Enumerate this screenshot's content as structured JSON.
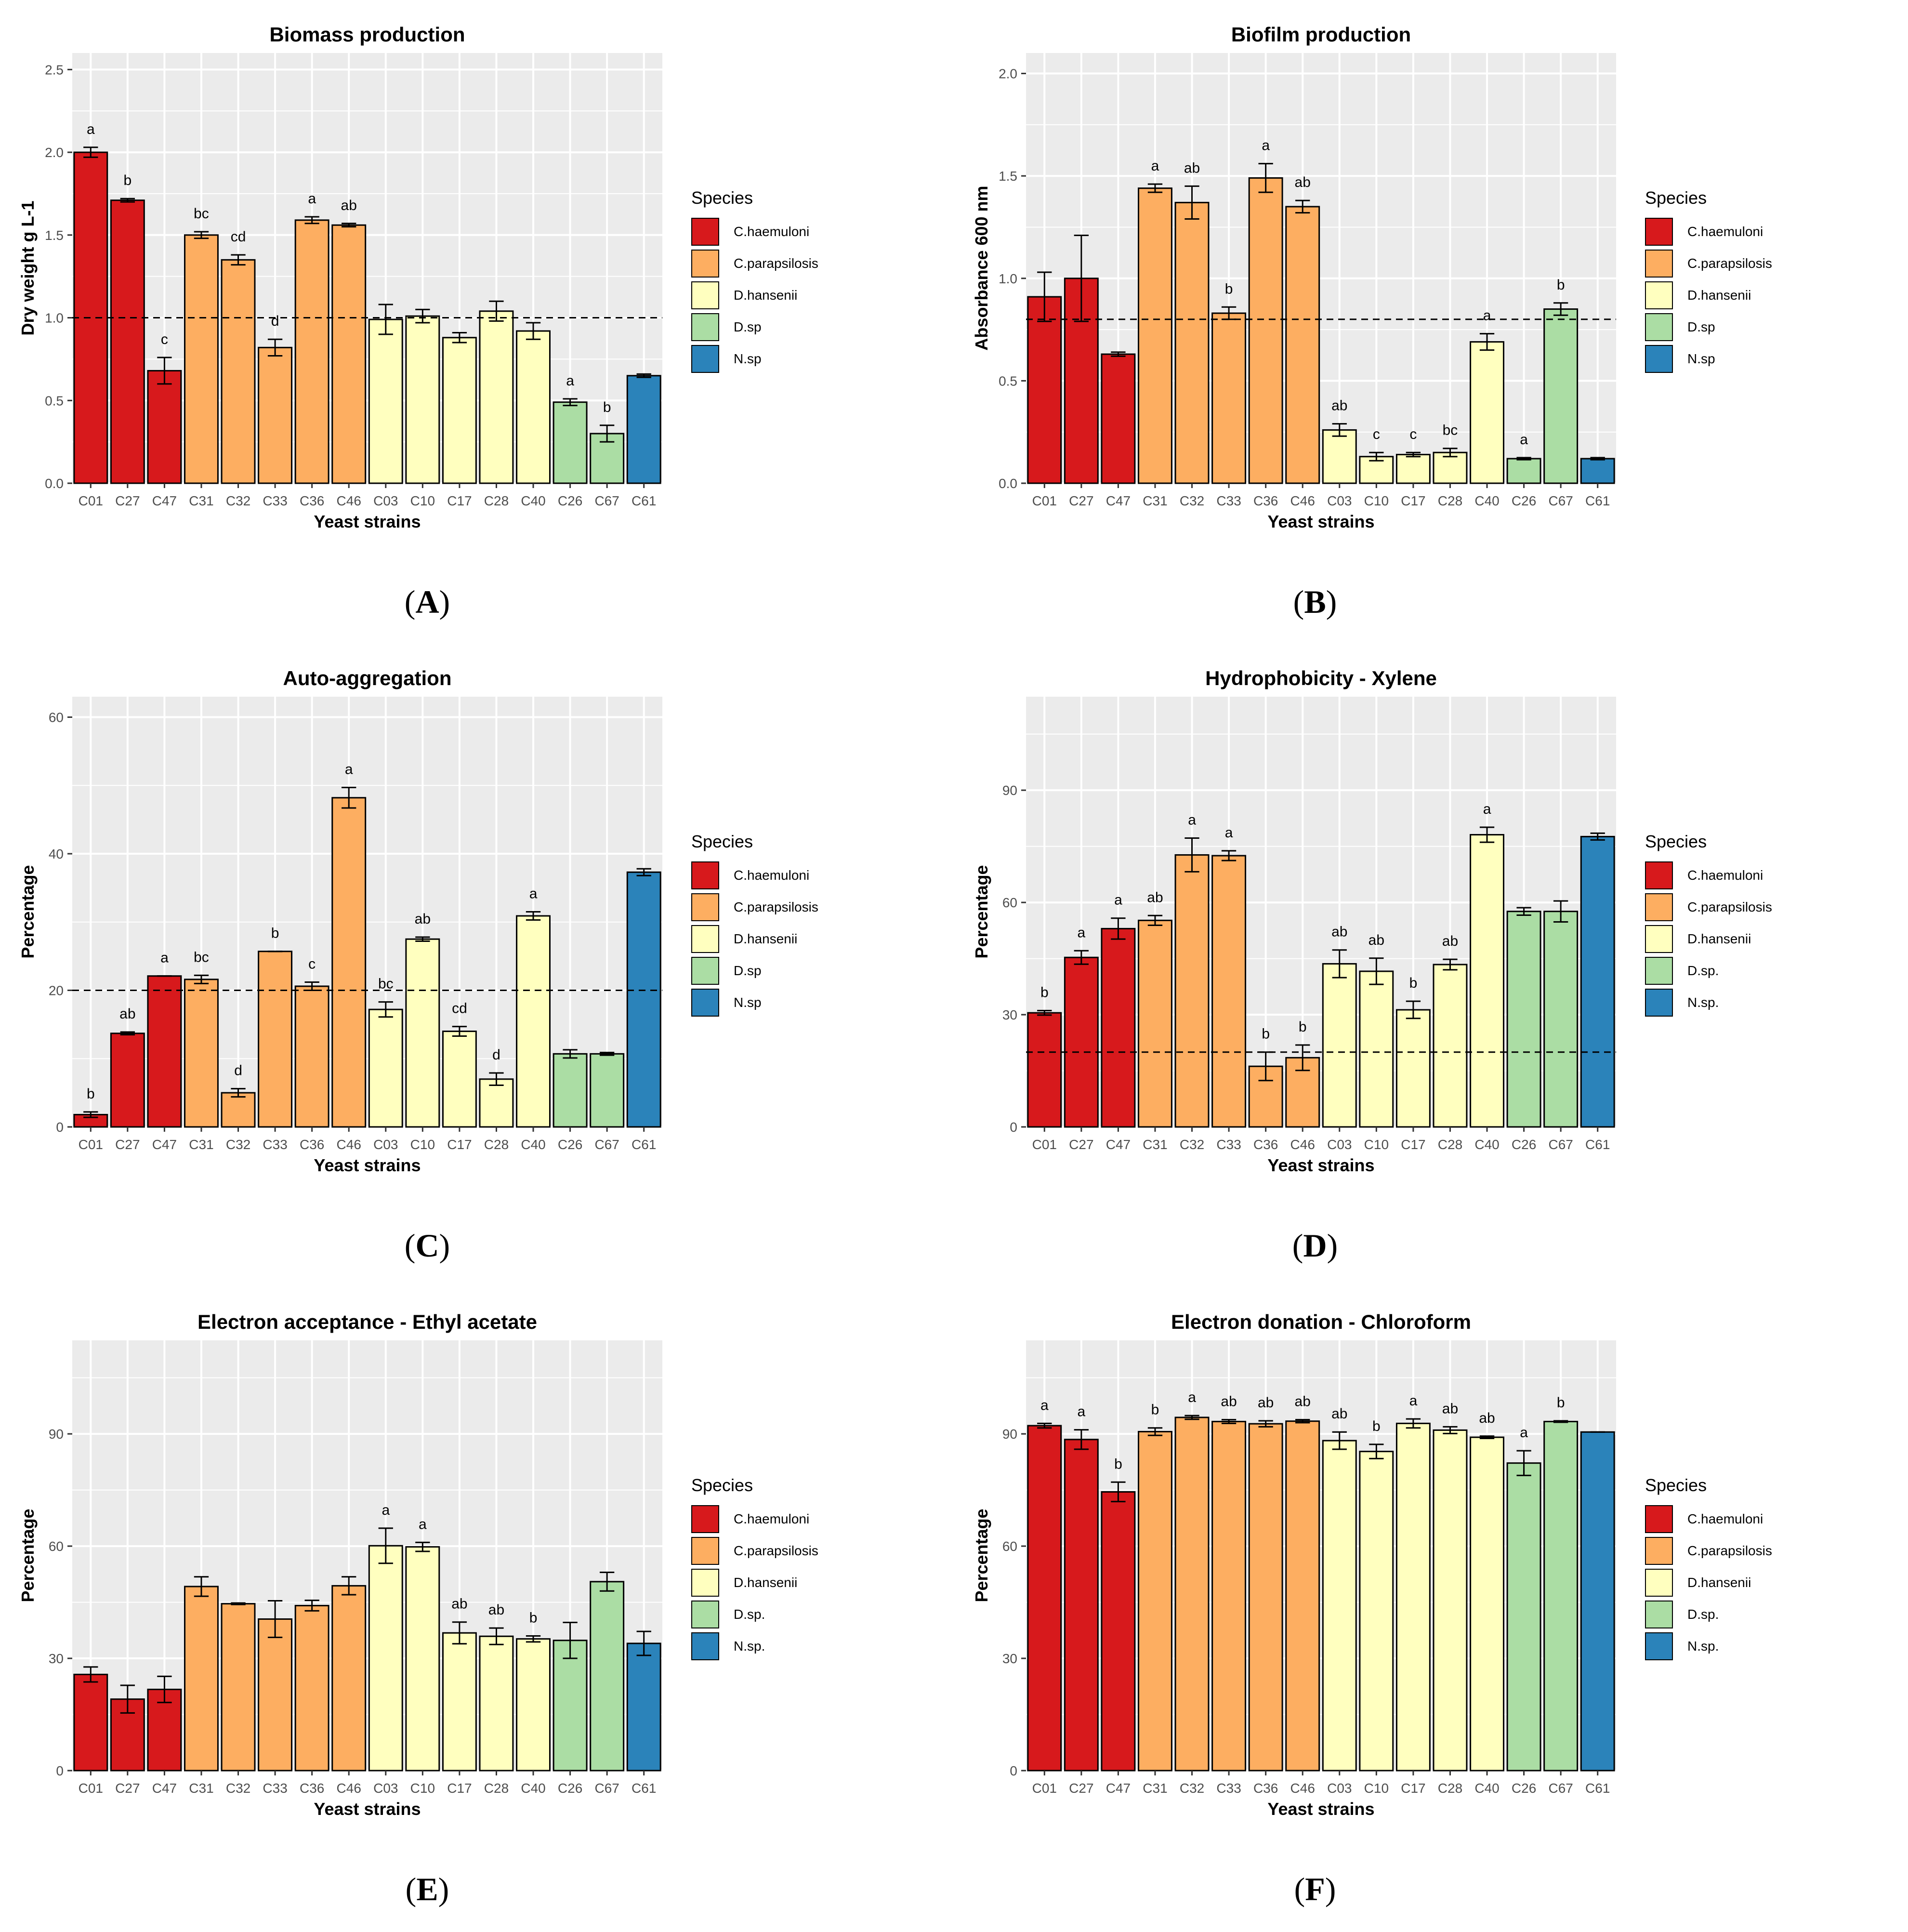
{
  "colors": {
    "C.haemuloni": "#d7191c",
    "C.parapsilosis": "#fdae61",
    "D.hansenii": "#ffffbf",
    "D.sp": "#abdda4",
    "N.sp": "#2b83ba",
    "panel_bg": "#ebebeb",
    "grid": "#ffffff"
  },
  "chart_data": [
    {
      "id": "A",
      "type": "bar",
      "panel_label": "A",
      "title": "Biomass production",
      "xlabel": "Yeast strains",
      "ylabel": "Dry weight g L-1",
      "ylim": [
        0,
        2.6
      ],
      "yticks": [
        0,
        0.5,
        1,
        1.5,
        2,
        2.5
      ],
      "ytick_labels": [
        "0.0",
        "0.5",
        "1.0",
        "1.5",
        "2.0",
        "2.5"
      ],
      "threshold": 1.0,
      "legend_title": "Species",
      "legend": [
        "C.haemuloni",
        "C.parapsilosis",
        "D.hansenii",
        "D.sp",
        "N.sp"
      ],
      "categories": [
        "C01",
        "C27",
        "C47",
        "C31",
        "C32",
        "C33",
        "C36",
        "C46",
        "C03",
        "C10",
        "C17",
        "C28",
        "C40",
        "C26",
        "C67",
        "C61"
      ],
      "species": [
        "C.haemuloni",
        "C.haemuloni",
        "C.haemuloni",
        "C.parapsilosis",
        "C.parapsilosis",
        "C.parapsilosis",
        "C.parapsilosis",
        "C.parapsilosis",
        "D.hansenii",
        "D.hansenii",
        "D.hansenii",
        "D.hansenii",
        "D.hansenii",
        "D.sp",
        "D.sp",
        "N.sp"
      ],
      "values": [
        2.0,
        1.71,
        0.68,
        1.5,
        1.35,
        0.82,
        1.59,
        1.56,
        0.99,
        1.01,
        0.88,
        1.04,
        0.92,
        0.49,
        0.3,
        0.65
      ],
      "errors": [
        0.03,
        0.01,
        0.08,
        0.02,
        0.03,
        0.05,
        0.02,
        0.01,
        0.09,
        0.04,
        0.03,
        0.06,
        0.05,
        0.02,
        0.05,
        0.01
      ],
      "letters": [
        "a",
        "b",
        "c",
        "bc",
        "cd",
        "d",
        "a",
        "ab",
        "",
        "",
        "",
        "",
        "",
        "a",
        "b",
        ""
      ]
    },
    {
      "id": "B",
      "type": "bar",
      "panel_label": "B",
      "title": "Biofilm production",
      "xlabel": "Yeast strains",
      "ylabel": "Absorbance 600 nm",
      "ylim": [
        0,
        2.1
      ],
      "yticks": [
        0,
        0.5,
        1,
        1.5,
        2
      ],
      "ytick_labels": [
        "0.0",
        "0.5",
        "1.0",
        "1.5",
        "2.0"
      ],
      "threshold": 0.8,
      "legend_title": "Species",
      "legend": [
        "C.haemuloni",
        "C.parapsilosis",
        "D.hansenii",
        "D.sp",
        "N.sp"
      ],
      "categories": [
        "C01",
        "C27",
        "C47",
        "C31",
        "C32",
        "C33",
        "C36",
        "C46",
        "C03",
        "C10",
        "C17",
        "C28",
        "C40",
        "C26",
        "C67",
        "C61"
      ],
      "species": [
        "C.haemuloni",
        "C.haemuloni",
        "C.haemuloni",
        "C.parapsilosis",
        "C.parapsilosis",
        "C.parapsilosis",
        "C.parapsilosis",
        "C.parapsilosis",
        "D.hansenii",
        "D.hansenii",
        "D.hansenii",
        "D.hansenii",
        "D.hansenii",
        "D.sp",
        "D.sp",
        "N.sp"
      ],
      "values": [
        0.91,
        1.0,
        0.63,
        1.44,
        1.37,
        0.83,
        1.49,
        1.35,
        0.26,
        0.13,
        0.14,
        0.15,
        0.69,
        0.12,
        0.85,
        0.12
      ],
      "errors": [
        0.12,
        0.21,
        0.01,
        0.02,
        0.08,
        0.03,
        0.07,
        0.03,
        0.03,
        0.02,
        0.01,
        0.02,
        0.04,
        0.005,
        0.03,
        0.005
      ],
      "letters": [
        "",
        "",
        "",
        "a",
        "ab",
        "b",
        "a",
        "ab",
        "ab",
        "c",
        "c",
        "bc",
        "a",
        "a",
        "b",
        ""
      ]
    },
    {
      "id": "C",
      "type": "bar",
      "panel_label": "C",
      "title": "Auto-aggregation",
      "xlabel": "Yeast strains",
      "ylabel": "Percentage",
      "ylim": [
        0,
        63
      ],
      "yticks": [
        0,
        20,
        40,
        60
      ],
      "ytick_labels": [
        "0",
        "20",
        "40",
        "60"
      ],
      "threshold": 20,
      "legend_title": "Species",
      "legend": [
        "C.haemuloni",
        "C.parapsilosis",
        "D.hansenii",
        "D.sp",
        "N.sp"
      ],
      "categories": [
        "C01",
        "C27",
        "C47",
        "C31",
        "C32",
        "C33",
        "C36",
        "C46",
        "C03",
        "C10",
        "C17",
        "C28",
        "C40",
        "C26",
        "C67",
        "C61"
      ],
      "species": [
        "C.haemuloni",
        "C.haemuloni",
        "C.haemuloni",
        "C.parapsilosis",
        "C.parapsilosis",
        "C.parapsilosis",
        "C.parapsilosis",
        "C.parapsilosis",
        "D.hansenii",
        "D.hansenii",
        "D.hansenii",
        "D.hansenii",
        "D.hansenii",
        "D.sp",
        "D.sp",
        "N.sp"
      ],
      "values": [
        1.8,
        13.7,
        22.1,
        21.6,
        5.0,
        25.7,
        20.6,
        48.2,
        17.2,
        27.5,
        14.0,
        7.0,
        30.9,
        10.7,
        10.7,
        37.3
      ],
      "errors": [
        0.4,
        0.2,
        0.0,
        0.6,
        0.6,
        0.0,
        0.6,
        1.5,
        1.1,
        0.3,
        0.7,
        0.9,
        0.6,
        0.6,
        0.2,
        0.5
      ],
      "letters": [
        "b",
        "ab",
        "a",
        "bc",
        "d",
        "b",
        "c",
        "a",
        "bc",
        "ab",
        "cd",
        "d",
        "a",
        "",
        "",
        ""
      ]
    },
    {
      "id": "D",
      "type": "bar",
      "panel_label": "D",
      "title": "Hydrophobicity - Xylene",
      "xlabel": "Yeast strains",
      "ylabel": "Percentage",
      "ylim": [
        0,
        115
      ],
      "yticks": [
        0,
        30,
        60,
        90
      ],
      "ytick_labels": [
        "0",
        "30",
        "60",
        "90"
      ],
      "threshold": 20,
      "legend_title": "Species",
      "legend": [
        "C.haemuloni",
        "C.parapsilosis",
        "D.hansenii",
        "D.sp.",
        "N.sp."
      ],
      "categories": [
        "C01",
        "C27",
        "C47",
        "C31",
        "C32",
        "C33",
        "C36",
        "C46",
        "C03",
        "C10",
        "C17",
        "C28",
        "C40",
        "C26",
        "C67",
        "C61"
      ],
      "species": [
        "C.haemuloni",
        "C.haemuloni",
        "C.haemuloni",
        "C.parapsilosis",
        "C.parapsilosis",
        "C.parapsilosis",
        "C.parapsilosis",
        "C.parapsilosis",
        "D.hansenii",
        "D.hansenii",
        "D.hansenii",
        "D.hansenii",
        "D.hansenii",
        "D.sp",
        "D.sp",
        "N.sp"
      ],
      "values": [
        30.5,
        45.3,
        53.0,
        55.2,
        72.7,
        72.5,
        16.2,
        18.5,
        43.6,
        41.6,
        31.3,
        43.4,
        78.1,
        57.6,
        57.6,
        77.6
      ],
      "errors": [
        0.6,
        1.8,
        2.8,
        1.3,
        4.5,
        1.3,
        3.8,
        3.4,
        3.7,
        3.5,
        2.3,
        1.4,
        2.0,
        1.0,
        2.8,
        0.9
      ],
      "letters": [
        "b",
        "a",
        "a",
        "ab",
        "a",
        "a",
        "b",
        "b",
        "ab",
        "ab",
        "b",
        "ab",
        "a",
        "",
        "",
        ""
      ]
    },
    {
      "id": "E",
      "type": "bar",
      "panel_label": "E",
      "title": "Electron acceptance - Ethyl acetate",
      "xlabel": "Yeast strains",
      "ylabel": "Percentage",
      "ylim": [
        0,
        115
      ],
      "yticks": [
        0,
        30,
        60,
        90
      ],
      "ytick_labels": [
        "0",
        "30",
        "60",
        "90"
      ],
      "threshold": null,
      "legend_title": "Species",
      "legend": [
        "C.haemuloni",
        "C.parapsilosis",
        "D.hansenii",
        "D.sp.",
        "N.sp."
      ],
      "categories": [
        "C01",
        "C27",
        "C47",
        "C31",
        "C32",
        "C33",
        "C36",
        "C46",
        "C03",
        "C10",
        "C17",
        "C28",
        "C40",
        "C26",
        "C67",
        "C61"
      ],
      "species": [
        "C.haemuloni",
        "C.haemuloni",
        "C.haemuloni",
        "C.parapsilosis",
        "C.parapsilosis",
        "C.parapsilosis",
        "C.parapsilosis",
        "C.parapsilosis",
        "D.hansenii",
        "D.hansenii",
        "D.hansenii",
        "D.hansenii",
        "D.hansenii",
        "D.sp",
        "D.sp",
        "N.sp"
      ],
      "values": [
        25.7,
        19.1,
        21.7,
        49.2,
        44.6,
        40.5,
        44.1,
        49.4,
        60.1,
        59.8,
        36.8,
        35.9,
        35.2,
        34.8,
        50.5,
        34.0
      ],
      "errors": [
        2.0,
        3.7,
        3.5,
        2.6,
        0.2,
        4.9,
        1.4,
        2.4,
        4.7,
        1.2,
        2.9,
        2.2,
        0.8,
        4.8,
        2.5,
        3.2
      ],
      "letters": [
        "",
        "",
        "",
        "",
        "",
        "",
        "",
        "",
        "a",
        "a",
        "ab",
        "ab",
        "b",
        "",
        "",
        ""
      ]
    },
    {
      "id": "F",
      "type": "bar",
      "panel_label": "F",
      "title": "Electron donation - Chloroform",
      "xlabel": "Yeast strains",
      "ylabel": "Percentage",
      "ylim": [
        0,
        115
      ],
      "yticks": [
        0,
        30,
        60,
        90
      ],
      "ytick_labels": [
        "0",
        "30",
        "60",
        "90"
      ],
      "threshold": null,
      "legend_title": "Species",
      "legend": [
        "C.haemuloni",
        "C.parapsilosis",
        "D.hansenii",
        "D.sp.",
        "N.sp."
      ],
      "categories": [
        "C01",
        "C27",
        "C47",
        "C31",
        "C32",
        "C33",
        "C36",
        "C46",
        "C03",
        "C10",
        "C17",
        "C28",
        "C40",
        "C26",
        "C67",
        "C61"
      ],
      "species": [
        "C.haemuloni",
        "C.haemuloni",
        "C.haemuloni",
        "C.parapsilosis",
        "C.parapsilosis",
        "C.parapsilosis",
        "C.parapsilosis",
        "C.parapsilosis",
        "D.hansenii",
        "D.hansenii",
        "D.hansenii",
        "D.hansenii",
        "D.hansenii",
        "D.sp",
        "D.sp",
        "N.sp"
      ],
      "values": [
        92.2,
        88.5,
        74.5,
        90.6,
        94.4,
        93.3,
        92.7,
        93.4,
        88.2,
        85.3,
        92.8,
        91.0,
        89.1,
        82.2,
        93.3,
        90.5
      ],
      "errors": [
        0.6,
        2.6,
        2.6,
        1.0,
        0.5,
        0.5,
        0.8,
        0.4,
        2.3,
        1.9,
        1.2,
        0.9,
        0.3,
        3.3,
        0.2,
        0.0
      ],
      "letters": [
        "a",
        "a",
        "b",
        "b",
        "a",
        "ab",
        "ab",
        "ab",
        "ab",
        "b",
        "a",
        "ab",
        "ab",
        "a",
        "b",
        ""
      ]
    }
  ]
}
